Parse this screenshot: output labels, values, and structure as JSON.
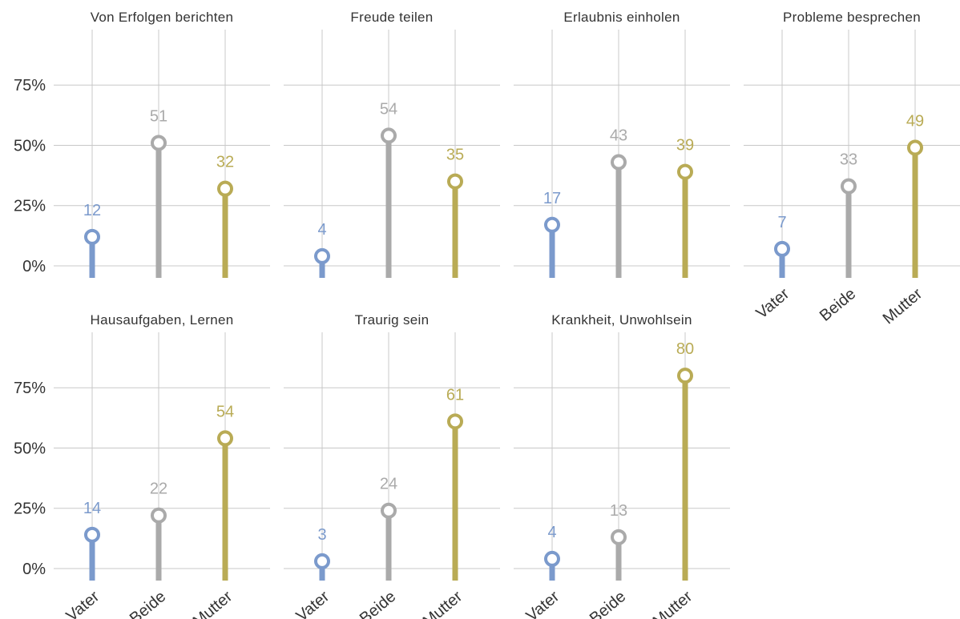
{
  "chart_data": {
    "type": "lollipop",
    "categories": [
      "Vater",
      "Beide",
      "Mutter"
    ],
    "colors": {
      "Vater": "#7b9acc",
      "Beide": "#aaaaaa",
      "Mutter": "#b9ab55"
    },
    "y_ticks": [
      {
        "value": 0,
        "label": "0%"
      },
      {
        "value": 25,
        "label": "25%"
      },
      {
        "value": 50,
        "label": "50%"
      },
      {
        "value": 75,
        "label": "75%"
      }
    ],
    "ylim": [
      -5,
      98
    ],
    "grid": true,
    "panels": [
      {
        "title": "Von Erfolgen berichten",
        "values": [
          12,
          51,
          32
        ]
      },
      {
        "title": "Freude teilen",
        "values": [
          4,
          54,
          35
        ]
      },
      {
        "title": "Erlaubnis einholen",
        "values": [
          17,
          43,
          39
        ]
      },
      {
        "title": "Probleme besprechen",
        "values": [
          7,
          33,
          49
        ]
      },
      {
        "title": "Hausaufgaben, Lernen",
        "values": [
          14,
          22,
          54
        ]
      },
      {
        "title": "Traurig sein",
        "values": [
          3,
          24,
          61
        ]
      },
      {
        "title": "Krankheit, Unwohlsein",
        "values": [
          4,
          13,
          80
        ]
      }
    ]
  }
}
